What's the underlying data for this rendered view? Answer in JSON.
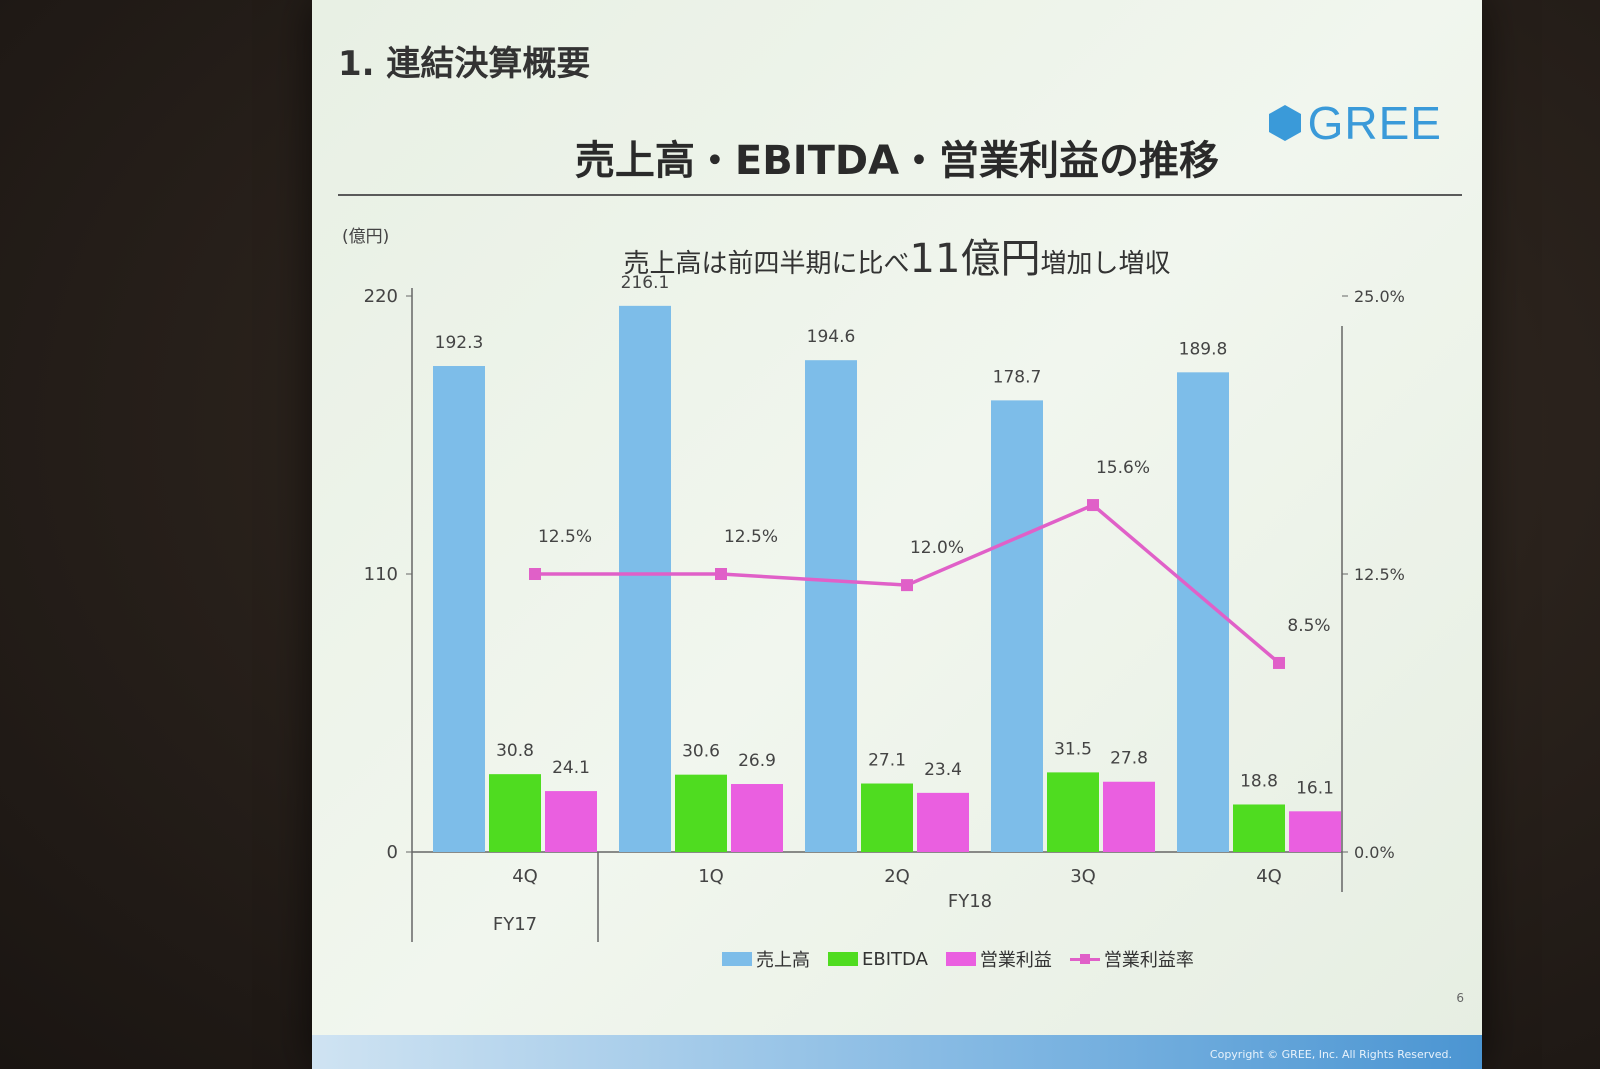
{
  "slide": {
    "section_title": "1. 連結決算概要",
    "logo_text": "GREE",
    "main_title": "売上高・EBITDA・営業利益の推移",
    "unit_label": "(億円)",
    "subtitle_pre": "売上高は前四半期に比べ",
    "subtitle_big": "11億円",
    "subtitle_post": "増加し増収",
    "page_number": "6",
    "copyright": "Copyright © GREE, Inc. All Rights Reserved."
  },
  "colors": {
    "revenue": "#7dbde9",
    "ebitda": "#4fdc20",
    "op_income": "#ea5fe0",
    "margin": "#e060c8"
  },
  "chart_data": {
    "type": "bar",
    "categories": [
      "4Q",
      "1Q",
      "2Q",
      "3Q",
      "4Q"
    ],
    "groups": [
      {
        "label": "FY17",
        "categories": [
          "4Q"
        ]
      },
      {
        "label": "FY18",
        "categories": [
          "1Q",
          "2Q",
          "3Q",
          "4Q"
        ]
      }
    ],
    "series": [
      {
        "name": "売上高",
        "values": [
          192.3,
          216.1,
          194.6,
          178.7,
          189.8
        ],
        "labels": [
          "192.3",
          "216.1",
          "194.6",
          "178.7",
          "189.8"
        ]
      },
      {
        "name": "EBITDA",
        "values": [
          30.8,
          30.6,
          27.1,
          31.5,
          18.8
        ],
        "labels": [
          "30.8",
          "30.6",
          "27.1",
          "31.5",
          "18.8"
        ]
      },
      {
        "name": "営業利益",
        "values": [
          24.1,
          26.9,
          23.4,
          27.8,
          16.1
        ],
        "labels": [
          "24.1",
          "26.9",
          "23.4",
          "27.8",
          "16.1"
        ]
      }
    ],
    "line_series": {
      "name": "営業利益率",
      "values": [
        12.5,
        12.5,
        12.0,
        15.6,
        8.5
      ],
      "labels": [
        "12.5%",
        "12.5%",
        "12.0%",
        "15.6%",
        "8.5%"
      ],
      "axis": "right"
    },
    "y_left": {
      "ticks": [
        "0",
        "110",
        "220"
      ],
      "lim": [
        0,
        220
      ]
    },
    "y_right": {
      "ticks": [
        "0.0%",
        "12.5%",
        "25.0%"
      ],
      "lim": [
        0,
        25
      ]
    },
    "legend": [
      "売上高",
      "EBITDA",
      "営業利益",
      "営業利益率"
    ],
    "legend_position": "bottom"
  }
}
